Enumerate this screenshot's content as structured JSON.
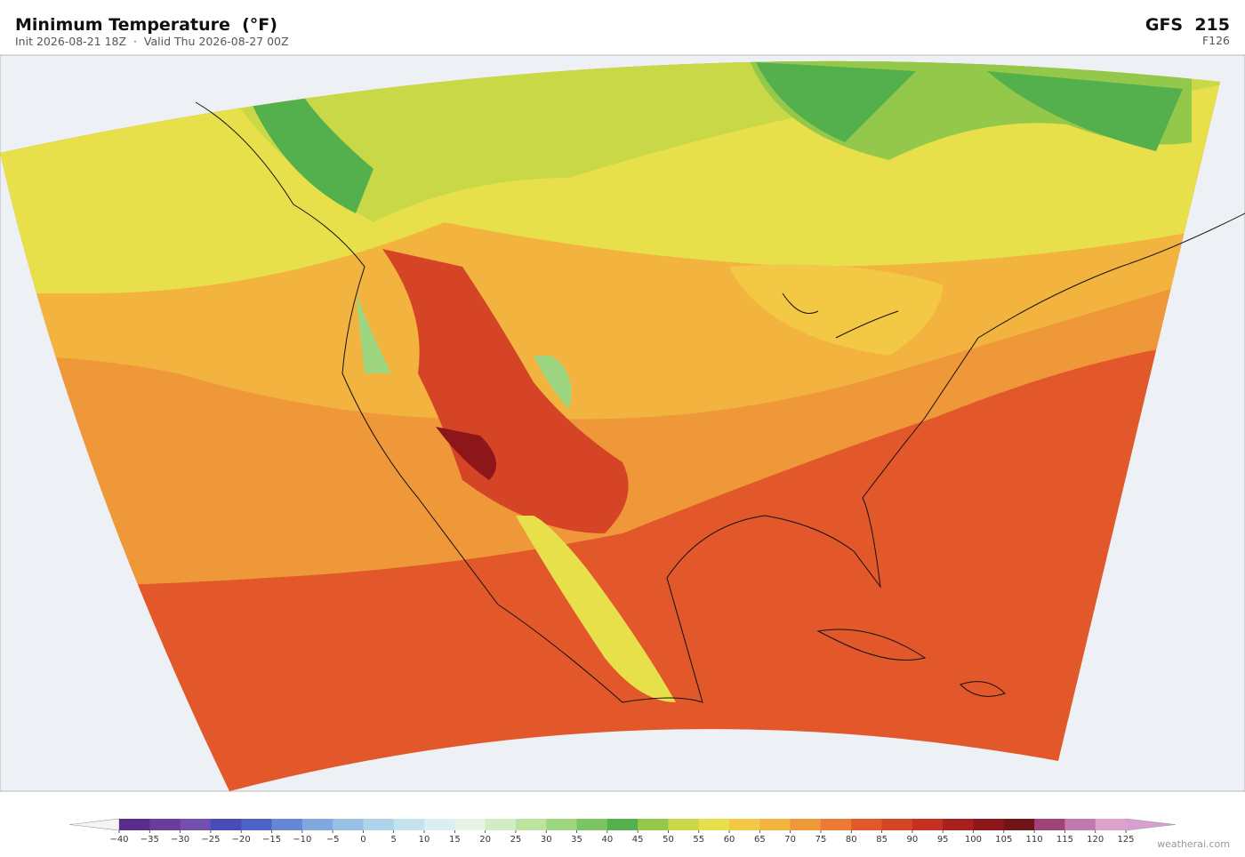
{
  "header": {
    "title": "Minimum Temperature  (°F)",
    "subtitle": "Init 2026-08-21 18Z  ·  Valid Thu 2026-08-27 00Z",
    "model": "GFS  215",
    "forecast_hour": "F126"
  },
  "colorbar": {
    "ticks": [
      {
        "value": -40,
        "label": "−40"
      },
      {
        "value": -35,
        "label": "−35"
      },
      {
        "value": -30,
        "label": "−30"
      },
      {
        "value": -25,
        "label": "−25"
      },
      {
        "value": -20,
        "label": "−20"
      },
      {
        "value": -15,
        "label": "−15"
      },
      {
        "value": -10,
        "label": "−10"
      },
      {
        "value": -5,
        "label": "−5"
      },
      0,
      5,
      10,
      15,
      20,
      25,
      30,
      35,
      40,
      45,
      50,
      55,
      60,
      65,
      70,
      75,
      80,
      85,
      90,
      95,
      100,
      105,
      110,
      115,
      120,
      125
    ],
    "colors": [
      "#5a2d8c",
      "#6a3d9a",
      "#7350b0",
      "#4a4ab8",
      "#4f62c8",
      "#6688d4",
      "#80a8dc",
      "#98bfe4",
      "#aed3ea",
      "#c5e3ef",
      "#dbeef2",
      "#e6f4e6",
      "#d4ecc4",
      "#bce3a0",
      "#9ed581",
      "#7cc463",
      "#54b04c",
      "#94c84a",
      "#c8d846",
      "#e8e04a",
      "#f2c844",
      "#f2b43e",
      "#ee983a",
      "#ea7a34",
      "#e2582a",
      "#d64426",
      "#c63022",
      "#a8201e",
      "#8c161a",
      "#701418",
      "#a04478",
      "#c07ab0",
      "#dca2cc"
    ],
    "under_color": "#f4f4f4",
    "over_color": "#d8a0d0"
  },
  "footer": {
    "watermark": "weatherai.com"
  }
}
